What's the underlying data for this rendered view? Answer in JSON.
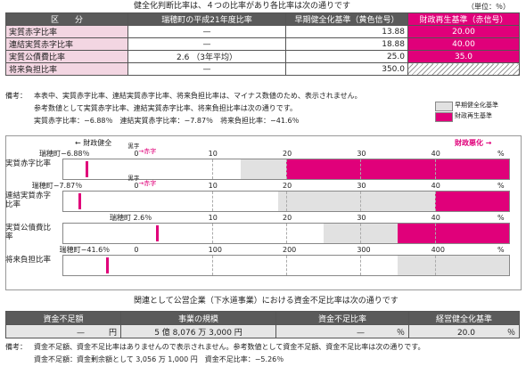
{
  "header": {
    "title": "健全化判断比率は、４つの比率があり各比率は次の通りです",
    "unit": "（単位：％）"
  },
  "ratios_table": {
    "headers": [
      "区　　分",
      "瑞穂町の平成21年度比率",
      "早期健全化基準（黄色信号）",
      "財政再生基準（赤信号）"
    ],
    "rows": [
      {
        "label": "実質赤字比率",
        "town": "—",
        "early": "13.88",
        "rebuild": "20.00"
      },
      {
        "label": "連結実質赤字比率",
        "town": "—",
        "early": "18.88",
        "rebuild": "40.00"
      },
      {
        "label": "実質公債費比率",
        "town": "2.6 （3年平均）",
        "early": "25.0",
        "rebuild": "35.0"
      },
      {
        "label": "将来負担比率",
        "town": "—",
        "early": "350.0",
        "rebuild": ""
      }
    ]
  },
  "note1": {
    "lead": "備考：",
    "line1": "本表中、実質赤字比率、連結実質赤字比率、将来負担比率は、マイナス数値のため、表示されません。",
    "line2": "参考数値として実質赤字比率、連結実質赤字比率、将来負担比率は次の通りです。",
    "line3": "実質赤字比率：−6.88％　連結実質赤字比率：−7.87％　将来負担比率：−41.6％"
  },
  "legend": {
    "early": "早期健全化基準",
    "rebuild": "財政再生基準"
  },
  "chart_header": {
    "left": "← 財政健全",
    "right": "財政悪化 →"
  },
  "chart_rows": [
    {
      "label": "実質赤字比率",
      "ticks": [
        "0",
        "10",
        "20",
        "30",
        "40",
        "%"
      ],
      "marker_text": "瑞穂町−6.88％",
      "kuro": "黒字",
      "aka": "→赤字",
      "min": -10,
      "max": 50,
      "early": 13.88,
      "rebuild": 20.0,
      "value": -6.88
    },
    {
      "label": "連結実質赤字比率",
      "ticks": [
        "0",
        "10",
        "20",
        "30",
        "40",
        "%"
      ],
      "marker_text": "瑞穂町−7.87％",
      "kuro": "黒字",
      "aka": "→赤字",
      "min": -10,
      "max": 50,
      "early": 18.88,
      "rebuild": 40.0,
      "value": -7.87
    },
    {
      "label": "実質公債費比率",
      "ticks": [
        "0",
        "10",
        "20",
        "30",
        "40",
        "%"
      ],
      "marker_text": "瑞穂町 2.6％",
      "min": -10,
      "max": 50,
      "early": 25.0,
      "rebuild": 35.0,
      "value": 2.6
    },
    {
      "label": "将来負担比率",
      "ticks": [
        "0",
        "100",
        "200",
        "300",
        "400",
        "%"
      ],
      "marker_text": "瑞穂町−41.6％",
      "min": -100,
      "max": 500,
      "early": 350.0,
      "rebuild": null,
      "value": -41.6
    }
  ],
  "public": {
    "title": "関連として公営企業（下水道事業）における資金不足比率は次の通りです",
    "headers": [
      "資金不足額",
      "事業の規模",
      "資金不足比率",
      "経営健全化基準"
    ],
    "row": [
      "—　　　円",
      "5 億 8,076 万 3,000 円",
      "—　　　　％",
      "20.0　　　　％"
    ]
  },
  "note2": {
    "lead": "備考：",
    "line1": "資金不足額、資金不足比率はありませんので表示されません。参考数値として資金不足額、資金不足比率は次の通りです。",
    "line2": "資金不足額：資金剰余額として 3,056 万 1,000 円　資金不足比率：−5.26％"
  },
  "colors": {
    "pink": "#e0007a",
    "gray": "#e1e1e1",
    "header": "#5a5a5a"
  }
}
